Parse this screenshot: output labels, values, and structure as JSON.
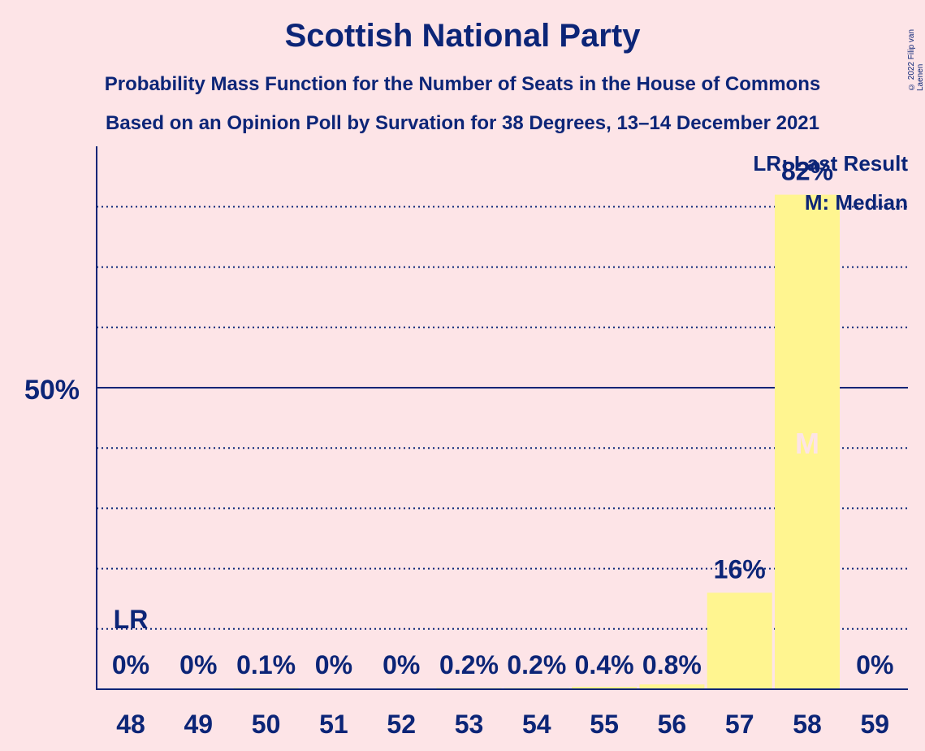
{
  "title": "Scottish National Party",
  "subtitle1": "Probability Mass Function for the Number of Seats in the House of Commons",
  "subtitle2": "Based on an Opinion Poll by Survation for 38 Degrees, 13–14 December 2021",
  "copyright": "© 2022 Filip van Laenen",
  "legend": {
    "last_result": "LR: Last Result",
    "median": "M: Median"
  },
  "colors": {
    "background": "#fde4e7",
    "bar": "#fff590",
    "text": "#0c2577",
    "median_marker": "#fde4e7"
  },
  "chart_data": {
    "type": "bar",
    "categories": [
      "48",
      "49",
      "50",
      "51",
      "52",
      "53",
      "54",
      "55",
      "56",
      "57",
      "58",
      "59"
    ],
    "values": [
      0,
      0,
      0.1,
      0,
      0,
      0.2,
      0.2,
      0.4,
      0.8,
      16,
      82,
      0
    ],
    "labels": [
      "0%",
      "0%",
      "0.1%",
      "0%",
      "0%",
      "0.2%",
      "0.2%",
      "0.4%",
      "0.8%",
      "16%",
      "82%",
      "0%"
    ],
    "ylim": [
      0,
      90
    ],
    "yticks": [
      {
        "value": 50,
        "label": "50%",
        "solid": true
      }
    ],
    "grid_values": [
      10,
      20,
      30,
      40,
      60,
      70,
      80
    ],
    "grid": true,
    "last_result": {
      "category": "48",
      "label": "LR"
    },
    "median": {
      "category": "58",
      "label": "M"
    },
    "legend_position": "top-right"
  }
}
